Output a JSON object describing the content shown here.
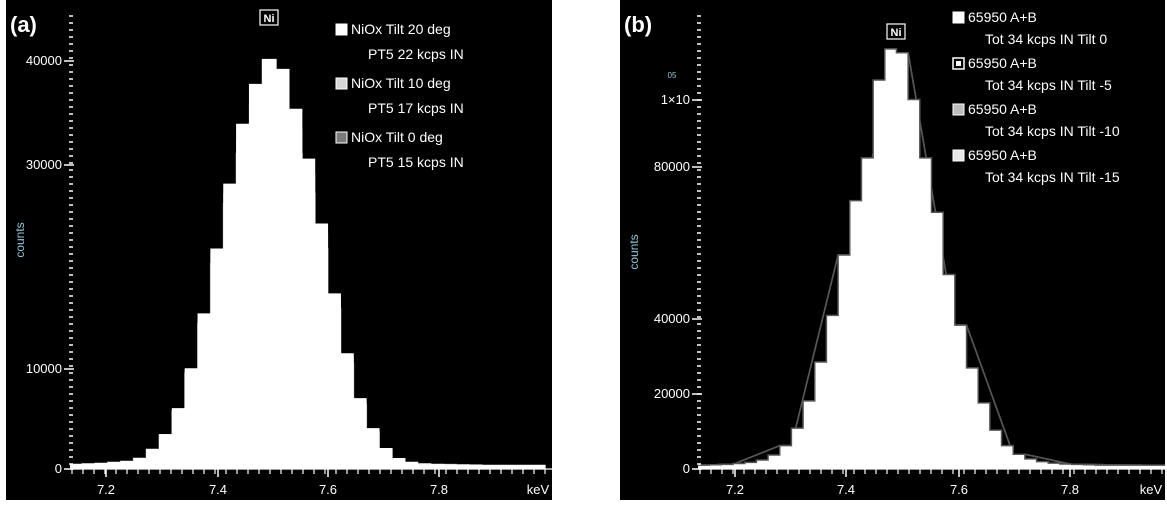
{
  "chart_data": [
    {
      "panel_label": "(a)",
      "type": "line",
      "style": "step-histogram",
      "ylabel": "counts",
      "xlabel": "keV",
      "peak_marker": "Ni",
      "xlim": [
        7.15,
        7.9
      ],
      "ylim": [
        0,
        46000
      ],
      "y_ticks": [
        "0",
        "10000",
        "30000",
        "40000"
      ],
      "x_ticks": [
        "7.2",
        "7.4",
        "7.6",
        "7.8"
      ],
      "bin_width": 0.02,
      "legend_position": "top-right",
      "series": [
        {
          "name": "NiOx Tilt 20 deg",
          "subtitle": "PT5 22 kcps IN",
          "color": "#ffffff",
          "marker": "filled-white",
          "x": [
            7.16,
            7.18,
            7.2,
            7.22,
            7.24,
            7.26,
            7.28,
            7.3,
            7.32,
            7.34,
            7.36,
            7.38,
            7.4,
            7.42,
            7.44,
            7.46,
            7.48,
            7.5,
            7.52,
            7.54,
            7.56,
            7.58,
            7.6,
            7.62,
            7.64,
            7.66,
            7.68,
            7.7,
            7.72,
            7.74,
            7.76,
            7.78,
            7.8,
            7.82,
            7.84,
            7.86,
            7.88
          ],
          "y": [
            400,
            450,
            500,
            600,
            700,
            1000,
            1900,
            3400,
            6000,
            10000,
            15500,
            22000,
            28500,
            34500,
            38500,
            41000,
            40000,
            36000,
            31000,
            24500,
            17500,
            11500,
            7000,
            4000,
            2000,
            1000,
            600,
            450,
            400,
            380,
            350,
            330,
            300,
            300,
            300,
            300,
            300
          ]
        },
        {
          "name": "NiOx Tilt 10 deg",
          "subtitle": "PT5 17 kcps IN",
          "color": "#d8d8d8",
          "marker": "filled-lightgray",
          "x": [
            7.16,
            7.18,
            7.2,
            7.22,
            7.24,
            7.26,
            7.28,
            7.3,
            7.32,
            7.34,
            7.36,
            7.38,
            7.4,
            7.42,
            7.44,
            7.46,
            7.48,
            7.5,
            7.52,
            7.54,
            7.56,
            7.58,
            7.6,
            7.62,
            7.64,
            7.66,
            7.68,
            7.7,
            7.72,
            7.74,
            7.76,
            7.78,
            7.8,
            7.82,
            7.84,
            7.86,
            7.88
          ],
          "y": [
            400,
            450,
            500,
            600,
            700,
            1000,
            1900,
            3400,
            5900,
            9800,
            15000,
            21500,
            27500,
            33000,
            36500,
            38500,
            37500,
            34000,
            29500,
            23500,
            17000,
            11200,
            6800,
            3900,
            2000,
            1000,
            600,
            450,
            400,
            380,
            350,
            330,
            300,
            300,
            300,
            300,
            300
          ]
        },
        {
          "name": "NiOx Tilt 0 deg",
          "subtitle": "PT5 15 kcps IN",
          "color": "#7a7a7a",
          "marker": "filled-gray",
          "x": [
            7.16,
            7.18,
            7.2,
            7.22,
            7.24,
            7.26,
            7.28,
            7.3,
            7.32,
            7.34,
            7.36,
            7.38,
            7.4,
            7.42,
            7.44,
            7.46,
            7.48,
            7.5,
            7.52,
            7.54,
            7.56,
            7.58,
            7.6,
            7.62,
            7.64,
            7.66,
            7.68,
            7.7,
            7.72,
            7.74,
            7.76,
            7.78,
            7.8,
            7.82,
            7.84,
            7.86,
            7.88
          ],
          "y": [
            400,
            450,
            500,
            600,
            700,
            1000,
            1900,
            3300,
            5700,
            9500,
            14500,
            20500,
            26500,
            31500,
            34500,
            35500,
            34500,
            31500,
            27500,
            22000,
            16000,
            10500,
            6400,
            3700,
            1900,
            950,
            600,
            450,
            400,
            380,
            350,
            330,
            300,
            300,
            300,
            300,
            300
          ]
        }
      ]
    },
    {
      "panel_label": "(b)",
      "type": "line",
      "style": "step-histogram",
      "ylabel": "counts",
      "xlabel": "keV",
      "peak_marker": "Ni",
      "xlim": [
        7.15,
        7.95
      ],
      "ylim": [
        0,
        118000
      ],
      "y_ticks": [
        "0",
        "20000",
        "40000",
        "80000",
        "1×10"
      ],
      "y_tick_superscript": "05",
      "x_ticks": [
        "7.2",
        "7.4",
        "7.6",
        "7.8"
      ],
      "bin_width": 0.02,
      "legend_position": "top-right",
      "series": [
        {
          "name": "65950 A+B",
          "subtitle": "Tot 34 kcps IN Tilt 0",
          "color": "#ffffff",
          "marker": "filled-white",
          "x": [
            7.16,
            7.18,
            7.2,
            7.22,
            7.24,
            7.26,
            7.28,
            7.3,
            7.32,
            7.34,
            7.36,
            7.38,
            7.4,
            7.42,
            7.44,
            7.46,
            7.48,
            7.5,
            7.52,
            7.54,
            7.56,
            7.58,
            7.6,
            7.62,
            7.64,
            7.66,
            7.68,
            7.7,
            7.72,
            7.74,
            7.76,
            7.78,
            7.8,
            7.82,
            7.84,
            7.86,
            7.88,
            7.9,
            7.92,
            7.94
          ],
          "y": [
            1000,
            1100,
            1200,
            1400,
            1700,
            2300,
            3600,
            6000,
            10500,
            17500,
            27500,
            39500,
            55000,
            69000,
            80000,
            100000,
            108000,
            107000,
            95000,
            80000,
            66000,
            50000,
            37000,
            26000,
            17000,
            10000,
            6000,
            3800,
            2600,
            1900,
            1500,
            1300,
            1200,
            1100,
            1000,
            1000,
            1000,
            1000,
            1000,
            1000
          ]
        },
        {
          "name": "65950 A+B",
          "subtitle": "Tot 34 kcps IN Tilt -5",
          "color": "#ffffff",
          "marker": "boxed-white",
          "x": [
            7.16,
            7.2,
            7.3,
            7.4,
            7.5,
            7.6,
            7.7,
            7.8,
            7.9
          ],
          "y": [
            1000,
            1200,
            6000,
            55000,
            107000,
            37000,
            3800,
            1200,
            1000
          ]
        },
        {
          "name": "65950 A+B",
          "subtitle": "Tot 34 kcps IN Tilt -10",
          "color": "#bdbdbd",
          "marker": "filled-gray",
          "x": [
            7.16,
            7.2,
            7.3,
            7.4,
            7.5,
            7.6,
            7.7,
            7.8,
            7.9
          ],
          "y": [
            1000,
            1200,
            6000,
            55000,
            107000,
            37000,
            3800,
            1200,
            1000
          ]
        },
        {
          "name": "65950 A+B",
          "subtitle": "Tot 34 kcps IN Tilt -15",
          "color": "#e6e6e6",
          "marker": "filled-lightgray",
          "x": [
            7.16,
            7.2,
            7.3,
            7.4,
            7.5,
            7.6,
            7.7,
            7.8,
            7.9
          ],
          "y": [
            1000,
            1200,
            6000,
            55000,
            107000,
            37000,
            3800,
            1200,
            1000
          ]
        }
      ]
    }
  ]
}
